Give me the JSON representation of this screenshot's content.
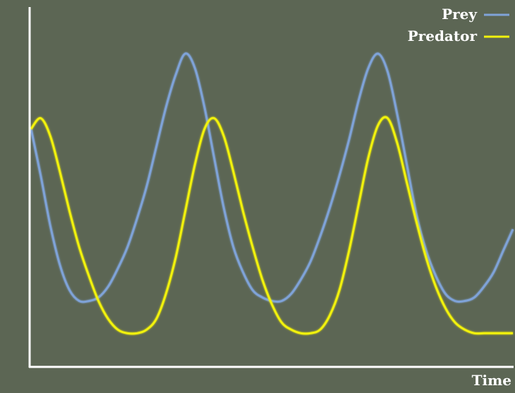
{
  "chart_data": {
    "type": "line",
    "title": "",
    "xlabel": "Time",
    "ylabel": "",
    "grid": false,
    "legend": "top-right",
    "background_color": "#5c6654",
    "axis_color": "#ffffff",
    "text_color": "#ffffff",
    "xlim": [
      0,
      100
    ],
    "ylim": [
      0,
      100
    ],
    "series": [
      {
        "name": "Prey",
        "color": "#7fa3d8",
        "points": [
          [
            0,
            66
          ],
          [
            2,
            53
          ],
          [
            4,
            39
          ],
          [
            6,
            28
          ],
          [
            8,
            21
          ],
          [
            10,
            18
          ],
          [
            12,
            18
          ],
          [
            14,
            19
          ],
          [
            16,
            22
          ],
          [
            18,
            27
          ],
          [
            20,
            33
          ],
          [
            22,
            41
          ],
          [
            24,
            50
          ],
          [
            26,
            61
          ],
          [
            28,
            72
          ],
          [
            30,
            81
          ],
          [
            32,
            87
          ],
          [
            34,
            83
          ],
          [
            36,
            72
          ],
          [
            38,
            58
          ],
          [
            40,
            44
          ],
          [
            42,
            33
          ],
          [
            44,
            26
          ],
          [
            46,
            21
          ],
          [
            48,
            19
          ],
          [
            50,
            18
          ],
          [
            52,
            18
          ],
          [
            54,
            20
          ],
          [
            56,
            24
          ],
          [
            58,
            29
          ],
          [
            60,
            36
          ],
          [
            62,
            44
          ],
          [
            64,
            53
          ],
          [
            66,
            63
          ],
          [
            68,
            74
          ],
          [
            70,
            83
          ],
          [
            72,
            87
          ],
          [
            74,
            82
          ],
          [
            76,
            70
          ],
          [
            78,
            56
          ],
          [
            80,
            42
          ],
          [
            82,
            32
          ],
          [
            84,
            25
          ],
          [
            86,
            20
          ],
          [
            88,
            18
          ],
          [
            90,
            18
          ],
          [
            92,
            19
          ],
          [
            94,
            22
          ],
          [
            96,
            26
          ],
          [
            98,
            32
          ],
          [
            100,
            38
          ]
        ]
      },
      {
        "name": "Predator",
        "color": "#f2f20c",
        "points": [
          [
            0,
            66
          ],
          [
            2,
            69
          ],
          [
            4,
            64
          ],
          [
            6,
            54
          ],
          [
            8,
            43
          ],
          [
            10,
            33
          ],
          [
            12,
            25
          ],
          [
            14,
            18
          ],
          [
            16,
            13
          ],
          [
            18,
            10
          ],
          [
            20,
            9
          ],
          [
            22,
            9
          ],
          [
            24,
            10
          ],
          [
            26,
            13
          ],
          [
            28,
            20
          ],
          [
            30,
            30
          ],
          [
            32,
            43
          ],
          [
            34,
            56
          ],
          [
            36,
            66
          ],
          [
            38,
            69
          ],
          [
            40,
            64
          ],
          [
            42,
            54
          ],
          [
            44,
            43
          ],
          [
            46,
            33
          ],
          [
            48,
            24
          ],
          [
            50,
            17
          ],
          [
            52,
            12
          ],
          [
            54,
            10
          ],
          [
            56,
            9
          ],
          [
            58,
            9
          ],
          [
            60,
            10
          ],
          [
            62,
            14
          ],
          [
            64,
            21
          ],
          [
            66,
            32
          ],
          [
            68,
            45
          ],
          [
            70,
            58
          ],
          [
            72,
            67
          ],
          [
            74,
            69
          ],
          [
            76,
            62
          ],
          [
            78,
            51
          ],
          [
            80,
            40
          ],
          [
            82,
            30
          ],
          [
            84,
            22
          ],
          [
            86,
            16
          ],
          [
            88,
            12
          ],
          [
            90,
            10
          ],
          [
            92,
            9
          ],
          [
            94,
            9
          ],
          [
            96,
            9
          ],
          [
            98,
            9
          ],
          [
            100,
            9
          ]
        ]
      }
    ]
  }
}
